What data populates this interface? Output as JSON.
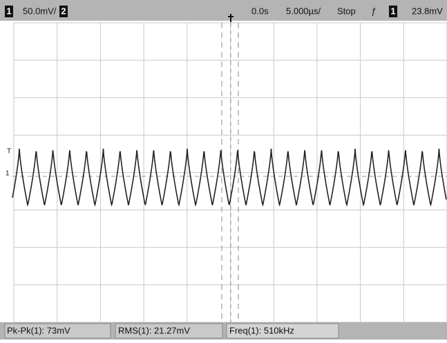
{
  "top_bar": {
    "channel1": "1",
    "scale1": "50.0mV/",
    "channel2": "2",
    "delay": "0.0s",
    "timebase": "5.000µs/",
    "mode": "Stop",
    "trigger_slope": "ƒ",
    "trigger_channel": "1",
    "trigger_level": "23.8mV"
  },
  "markers": {
    "trigger": "T",
    "channel": "1"
  },
  "measurements": [
    "Pk-Pk(1): 73mV",
    "RMS(1): 21.27mV",
    "Freq(1): 510kHz"
  ]
}
